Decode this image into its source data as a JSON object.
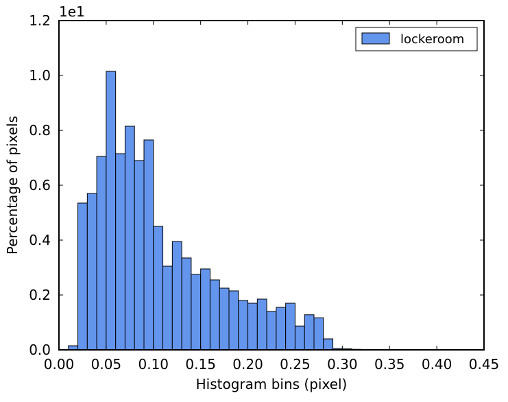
{
  "chart_data": {
    "type": "bar",
    "subtype": "histogram",
    "title": "",
    "xlabel": "Histogram bins (pixel)",
    "ylabel": "Percentage of pixels",
    "y_multiplier_label": "1e1",
    "xlim": [
      0.0,
      0.45
    ],
    "ylim": [
      0.0,
      1.2
    ],
    "x_ticks": [
      "0.00",
      "0.05",
      "0.10",
      "0.15",
      "0.20",
      "0.25",
      "0.30",
      "0.35",
      "0.40",
      "0.45"
    ],
    "y_ticks": [
      "0.0",
      "0.2",
      "0.4",
      "0.6",
      "0.8",
      "1.0",
      "1.2"
    ],
    "grid": false,
    "legend_position": "top-right",
    "bar_color": "#6495ed",
    "edge_color": "#000000",
    "bin_width": 0.01,
    "series": [
      {
        "name": "lockeroom",
        "bin_starts": [
          0.01,
          0.02,
          0.03,
          0.04,
          0.05,
          0.06,
          0.07,
          0.08,
          0.09,
          0.1,
          0.11,
          0.12,
          0.13,
          0.14,
          0.15,
          0.16,
          0.17,
          0.18,
          0.19,
          0.2,
          0.21,
          0.22,
          0.23,
          0.24,
          0.25,
          0.26,
          0.27,
          0.28,
          0.29,
          0.3,
          0.31
        ],
        "values": [
          0.015,
          0.535,
          0.57,
          0.705,
          1.015,
          0.715,
          0.815,
          0.69,
          0.765,
          0.45,
          0.305,
          0.395,
          0.335,
          0.275,
          0.295,
          0.255,
          0.225,
          0.215,
          0.18,
          0.17,
          0.185,
          0.14,
          0.155,
          0.17,
          0.087,
          0.128,
          0.117,
          0.04,
          0.005,
          0.004,
          0.002
        ]
      }
    ]
  }
}
